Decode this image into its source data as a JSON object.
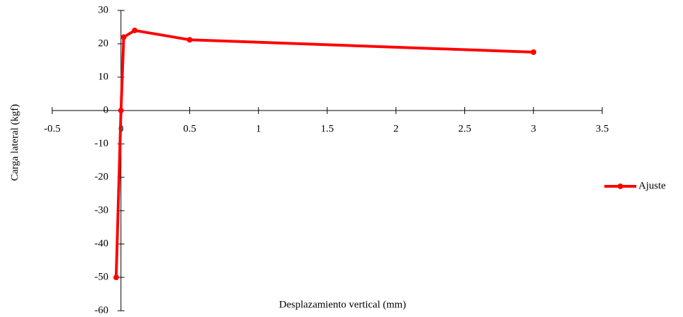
{
  "chart_data": {
    "type": "line",
    "x_label": "Desplazamiento vertical (mm)",
    "y_label": "Carga lateral (kgf)",
    "xlim": [
      -0.5,
      3.5
    ],
    "xticks": [
      -0.5,
      0,
      0.5,
      1,
      1.5,
      2,
      2.5,
      3,
      3.5
    ],
    "ylim": [
      -60,
      30
    ],
    "yticks": [
      -60,
      -50,
      -40,
      -30,
      -20,
      -10,
      0,
      10,
      20,
      30
    ],
    "legend": "right",
    "series": [
      {
        "name": "Ajuste",
        "color": "#ff0000",
        "x": [
          -0.035,
          0,
          0.02,
          0.1,
          0.5,
          3
        ],
        "values": [
          -50,
          0,
          22,
          24,
          21.2,
          17.5
        ]
      }
    ]
  }
}
